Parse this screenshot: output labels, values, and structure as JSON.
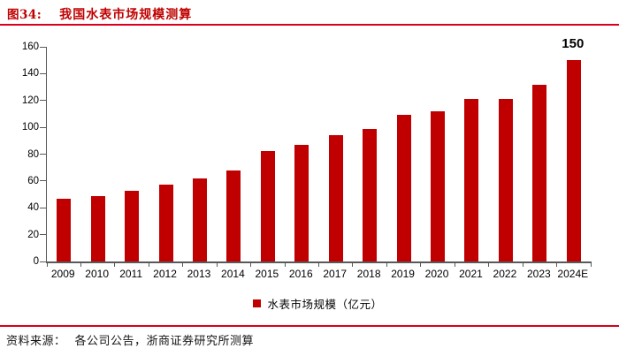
{
  "figure": {
    "label": "图34:",
    "title": "我国水表市场规模测算"
  },
  "chart_data": {
    "type": "bar",
    "title": "我国水表市场规模测算",
    "categories": [
      "2009",
      "2010",
      "2011",
      "2012",
      "2013",
      "2014",
      "2015",
      "2016",
      "2017",
      "2018",
      "2019",
      "2020",
      "2021",
      "2022",
      "2023",
      "2024E"
    ],
    "values": [
      47,
      49,
      53,
      57,
      62,
      68,
      82,
      87,
      94,
      99,
      109,
      112,
      121,
      121,
      132,
      150
    ],
    "series_name": "水表市场规模（亿元）",
    "xlabel": "",
    "ylabel": "",
    "ylim": [
      0,
      160
    ],
    "ytick_step": 20,
    "grid": false,
    "legend_position": "bottom",
    "bar_color": "#c00000",
    "annotation": {
      "category": "2024E",
      "text": "150"
    }
  },
  "legend": {
    "label": "水表市场规模（亿元）"
  },
  "footer": {
    "source_label": "资料来源：",
    "source_text": "各公司公告，浙商证券研究所测算"
  },
  "colors": {
    "bar": "#c00000",
    "title": "#c00000",
    "rule": "#d9001b",
    "axis": "#595959"
  }
}
